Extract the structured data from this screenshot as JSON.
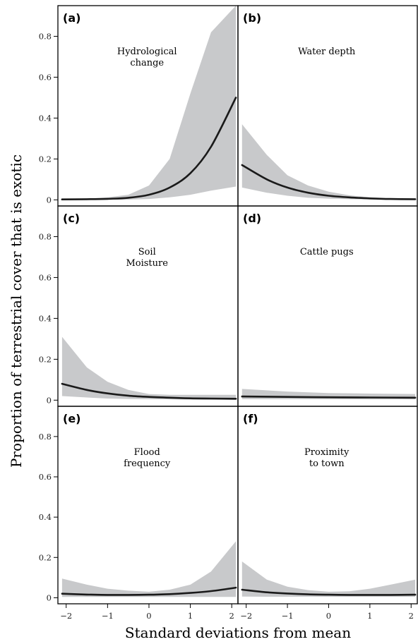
{
  "chart_data": {
    "type": "line",
    "layout": "3x2 panel grid",
    "ylabel": "Proportion of terrestrial cover that is exotic",
    "xlabel": "Standard deviations from mean",
    "xlim": [
      -2.2,
      2.15
    ],
    "ylim": [
      -0.03,
      0.95
    ],
    "xticks": [
      -2,
      -1,
      0,
      1,
      2
    ],
    "xtick_labels": [
      "−2",
      "−1",
      "0",
      "1",
      "2"
    ],
    "yticks": [
      0,
      0.2,
      0.4,
      0.6,
      0.8
    ],
    "ytick_labels": [
      "0",
      "0.2",
      "0.4",
      "0.6",
      "0.8"
    ],
    "grid": false,
    "band_color": "#c8c9cb",
    "line_color": "#1a1a1a",
    "panels": [
      {
        "letter": "(a)",
        "title": [
          "Hydrological",
          "change"
        ],
        "x": [
          -2.1,
          -1.5,
          -1.0,
          -0.5,
          0.0,
          0.5,
          1.0,
          1.5,
          2.1
        ],
        "mean": [
          0.002,
          0.003,
          0.005,
          0.01,
          0.025,
          0.06,
          0.13,
          0.26,
          0.5
        ],
        "lower": [
          0.0,
          0.0,
          0.0,
          0.001,
          0.004,
          0.012,
          0.025,
          0.045,
          0.065
        ],
        "upper": [
          0.003,
          0.006,
          0.012,
          0.025,
          0.07,
          0.2,
          0.52,
          0.82,
          0.95
        ]
      },
      {
        "letter": "(b)",
        "title": [
          "Water depth"
        ],
        "x": [
          -2.1,
          -1.5,
          -1.0,
          -0.5,
          0.0,
          0.5,
          1.0,
          1.5,
          2.1
        ],
        "mean": [
          0.17,
          0.1,
          0.06,
          0.035,
          0.02,
          0.012,
          0.007,
          0.004,
          0.003
        ],
        "lower": [
          0.06,
          0.035,
          0.02,
          0.01,
          0.006,
          0.003,
          0.002,
          0.001,
          0.001
        ],
        "upper": [
          0.37,
          0.22,
          0.12,
          0.07,
          0.04,
          0.022,
          0.012,
          0.006,
          0.004
        ]
      },
      {
        "letter": "(c)",
        "title": [
          "Soil",
          "Moisture"
        ],
        "x": [
          -2.1,
          -1.5,
          -1.0,
          -0.5,
          0.0,
          0.5,
          1.0,
          1.5,
          2.1
        ],
        "mean": [
          0.08,
          0.05,
          0.033,
          0.022,
          0.016,
          0.012,
          0.009,
          0.008,
          0.007
        ],
        "lower": [
          0.02,
          0.013,
          0.008,
          0.006,
          0.005,
          0.004,
          0.003,
          0.002,
          0.001
        ],
        "upper": [
          0.31,
          0.16,
          0.09,
          0.05,
          0.03,
          0.026,
          0.026,
          0.026,
          0.026
        ]
      },
      {
        "letter": "(d)",
        "title": [
          "Cattle pugs"
        ],
        "x": [
          -2.1,
          -1.0,
          0.0,
          1.0,
          2.1
        ],
        "mean": [
          0.018,
          0.016,
          0.014,
          0.013,
          0.012
        ],
        "lower": [
          0.005,
          0.005,
          0.005,
          0.004,
          0.004
        ],
        "upper": [
          0.055,
          0.042,
          0.035,
          0.032,
          0.03
        ]
      },
      {
        "letter": "(e)",
        "title": [
          "Flood",
          "frequency"
        ],
        "x": [
          -2.1,
          -1.5,
          -1.0,
          -0.5,
          0.0,
          0.5,
          1.0,
          1.5,
          2.1
        ],
        "mean": [
          0.02,
          0.016,
          0.014,
          0.014,
          0.015,
          0.018,
          0.024,
          0.033,
          0.05
        ],
        "lower": [
          0.004,
          0.004,
          0.004,
          0.004,
          0.004,
          0.004,
          0.004,
          0.004,
          0.004
        ],
        "upper": [
          0.095,
          0.065,
          0.045,
          0.035,
          0.03,
          0.04,
          0.065,
          0.13,
          0.28
        ]
      },
      {
        "letter": "(f)",
        "title": [
          "Proximity",
          "to town"
        ],
        "x": [
          -2.1,
          -1.5,
          -1.0,
          -0.5,
          0.0,
          0.5,
          1.0,
          1.5,
          2.1
        ],
        "mean": [
          0.04,
          0.027,
          0.021,
          0.017,
          0.015,
          0.014,
          0.014,
          0.014,
          0.015
        ],
        "lower": [
          0.006,
          0.005,
          0.005,
          0.005,
          0.005,
          0.005,
          0.005,
          0.005,
          0.005
        ],
        "upper": [
          0.18,
          0.09,
          0.055,
          0.038,
          0.03,
          0.032,
          0.045,
          0.065,
          0.09
        ]
      }
    ]
  }
}
